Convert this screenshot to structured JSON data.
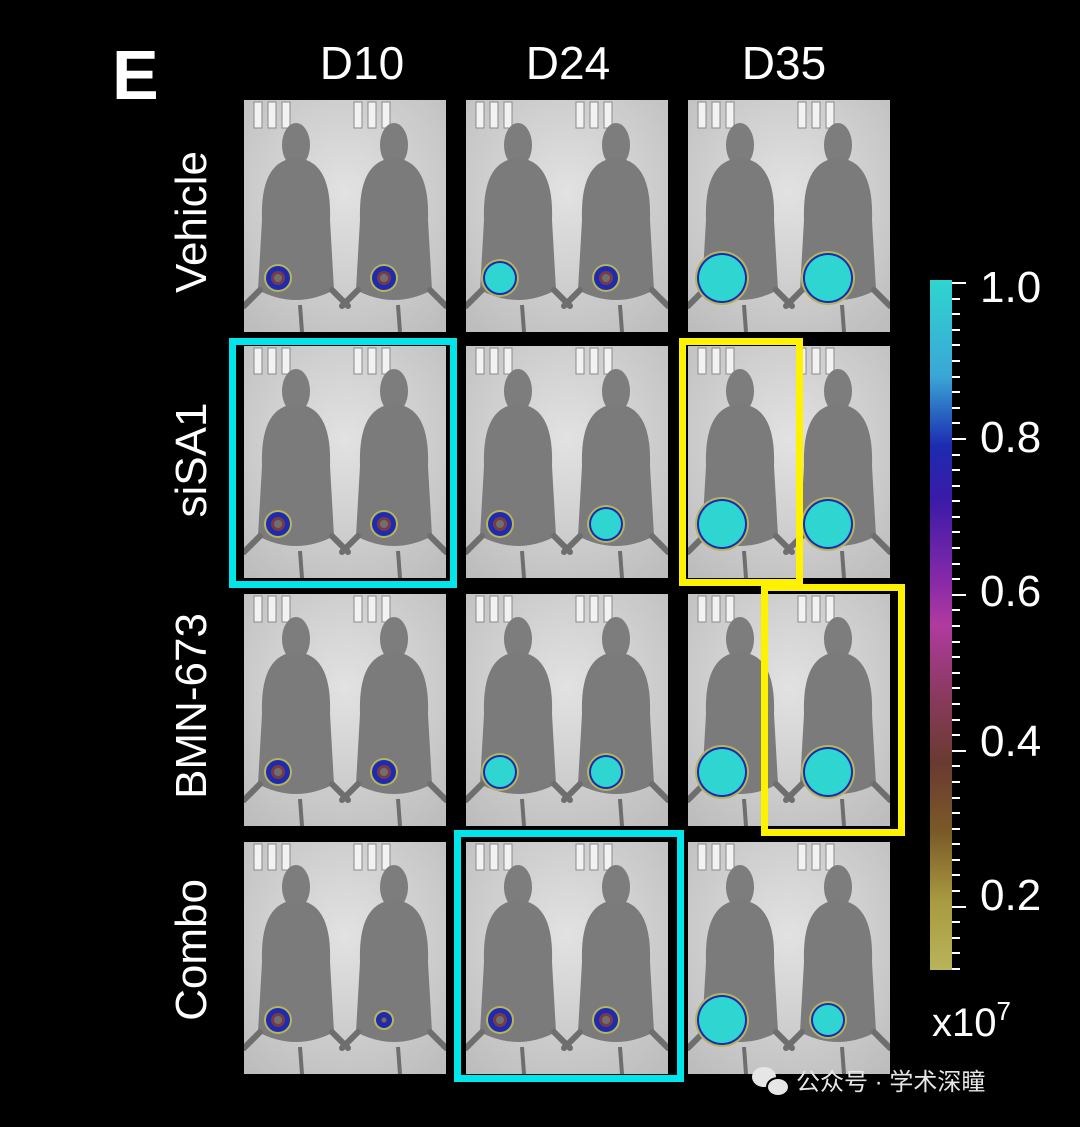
{
  "panel_letter": "E",
  "columns": [
    "D10",
    "D24",
    "D35"
  ],
  "rows": [
    "Vehicle",
    "siSA1",
    "BMN-673",
    "Combo"
  ],
  "colorbar": {
    "ticks": [
      "1.0",
      "0.8",
      "0.6",
      "0.4",
      "0.2"
    ],
    "unit_base": "x10",
    "unit_exp": "7",
    "colors": {
      "high": "#2fd5d0",
      "mid": "#1c2bb0",
      "low": "#b8b45a"
    }
  },
  "highlights": {
    "cyan": "#00e5ea",
    "yellow": "#fff200",
    "boxes": [
      {
        "row": "siSA1",
        "column": "D10",
        "mice": "both",
        "color": "cyan"
      },
      {
        "row": "siSA1",
        "column": "D35",
        "mice": "left",
        "color": "yellow"
      },
      {
        "row": "BMN-673",
        "column": "D35",
        "mice": "right",
        "color": "yellow"
      },
      {
        "row": "Combo",
        "column": "D24",
        "mice": "both",
        "color": "cyan"
      }
    ]
  },
  "signal_levels": {
    "Vehicle": {
      "D10": [
        "small",
        "small"
      ],
      "D24": [
        "medium",
        "small"
      ],
      "D35": [
        "large",
        "large"
      ]
    },
    "siSA1": {
      "D10": [
        "small",
        "small"
      ],
      "D24": [
        "small",
        "medium"
      ],
      "D35": [
        "large",
        "large"
      ]
    },
    "BMN-673": {
      "D10": [
        "small",
        "small"
      ],
      "D24": [
        "medium",
        "medium"
      ],
      "D35": [
        "large",
        "large"
      ]
    },
    "Combo": {
      "D10": [
        "small",
        "tiny"
      ],
      "D24": [
        "small",
        "small"
      ],
      "D35": [
        "large",
        "medium"
      ]
    }
  },
  "watermark": "公众号 · 学术深瞳"
}
